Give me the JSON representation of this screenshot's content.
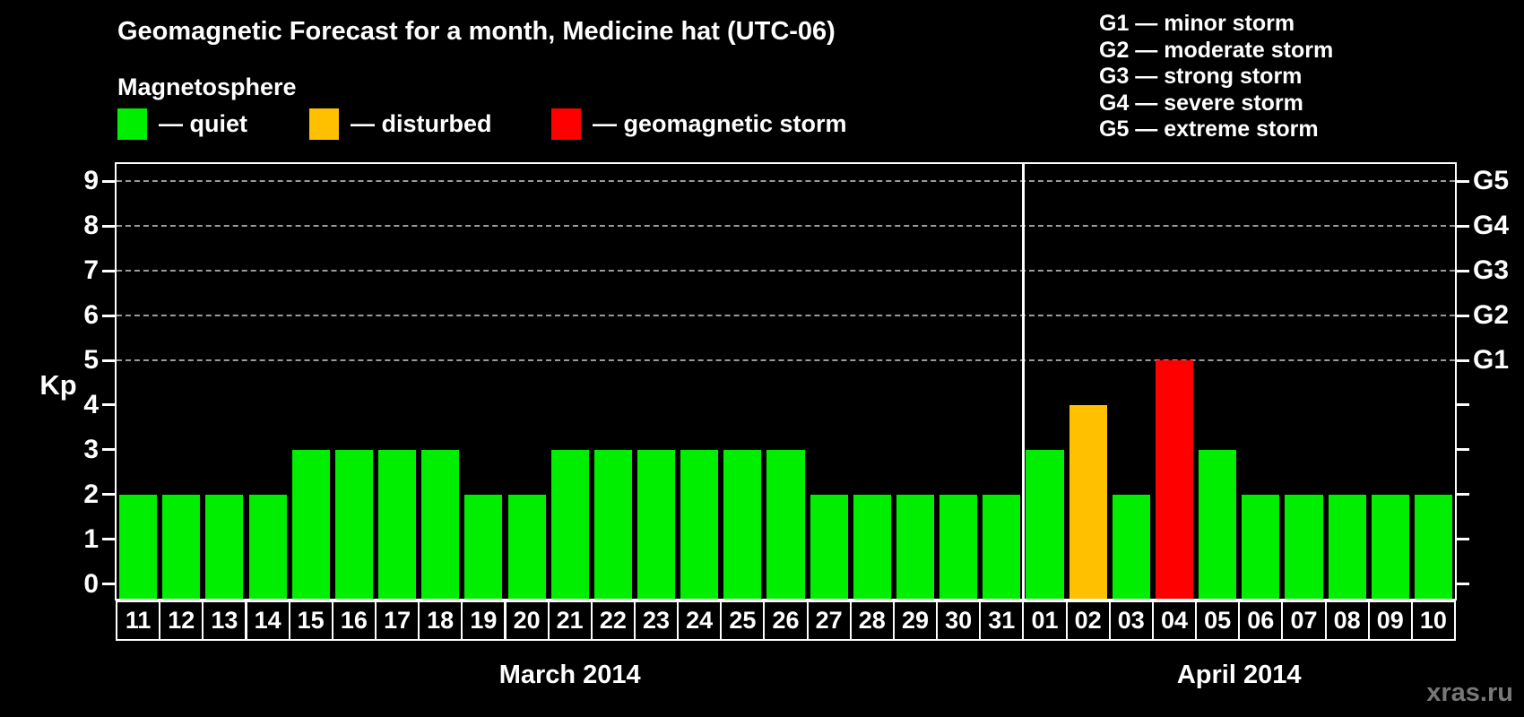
{
  "header": {
    "title": "Geomagnetic Forecast for a month, Medicine hat (UTC-06)",
    "subtitle": "Magnetosphere",
    "legend_items": [
      {
        "status": "quiet",
        "label": "— quiet",
        "color": "#00ee00"
      },
      {
        "status": "disturbed",
        "label": "— disturbed",
        "color": "#ffc000"
      },
      {
        "status": "storm",
        "label": "— geomagnetic storm",
        "color": "#ff0000"
      }
    ],
    "storm_scale": [
      "G1 — minor storm",
      "G2 — moderate storm",
      "G3 — strong storm",
      "G4 — severe storm",
      "G5 — extreme storm"
    ]
  },
  "watermark": "xras.ru",
  "chart_data": {
    "type": "bar",
    "title": "Geomagnetic Forecast for a month, Medicine hat (UTC-06)",
    "xlabel": "",
    "ylabel": "Kp",
    "ylim": [
      0,
      9
    ],
    "yticks": [
      0,
      1,
      2,
      3,
      4,
      5,
      6,
      7,
      8,
      9
    ],
    "gridlines_at_kp": [
      5,
      6,
      7,
      8,
      9
    ],
    "grid": true,
    "legend_position": "top",
    "right_axis": [
      {
        "kp": 5,
        "label": "G1"
      },
      {
        "kp": 6,
        "label": "G2"
      },
      {
        "kp": 7,
        "label": "G3"
      },
      {
        "kp": 8,
        "label": "G4"
      },
      {
        "kp": 9,
        "label": "G5"
      }
    ],
    "colors": {
      "quiet": "#00ee00",
      "disturbed": "#ffc000",
      "storm": "#ff0000",
      "axis": "#ffffff",
      "grid": "#9a9a9a",
      "background": "#000000",
      "watermark": "#787878"
    },
    "months": [
      {
        "label": "March 2014",
        "days": [
          "11",
          "12",
          "13",
          "14",
          "15",
          "16",
          "17",
          "18",
          "19",
          "20",
          "21",
          "22",
          "23",
          "24",
          "25",
          "26",
          "27",
          "28",
          "29",
          "30",
          "31"
        ],
        "kp_values": [
          2,
          2,
          2,
          2,
          3,
          3,
          3,
          3,
          2,
          2,
          3,
          3,
          3,
          3,
          3,
          3,
          2,
          2,
          2,
          2,
          2
        ],
        "statuses": [
          "quiet",
          "quiet",
          "quiet",
          "quiet",
          "quiet",
          "quiet",
          "quiet",
          "quiet",
          "quiet",
          "quiet",
          "quiet",
          "quiet",
          "quiet",
          "quiet",
          "quiet",
          "quiet",
          "quiet",
          "quiet",
          "quiet",
          "quiet",
          "quiet"
        ]
      },
      {
        "label": "April 2014",
        "days": [
          "01",
          "02",
          "03",
          "04",
          "05",
          "06",
          "07",
          "08",
          "09",
          "10"
        ],
        "kp_values": [
          3,
          4,
          2,
          5,
          3,
          2,
          2,
          2,
          2,
          2
        ],
        "statuses": [
          "quiet",
          "disturbed",
          "quiet",
          "storm",
          "quiet",
          "quiet",
          "quiet",
          "quiet",
          "quiet",
          "quiet"
        ]
      }
    ]
  }
}
